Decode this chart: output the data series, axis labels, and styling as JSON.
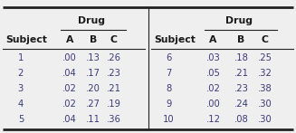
{
  "left_subjects": [
    "1",
    "2",
    "3",
    "4",
    "5"
  ],
  "left_A": [
    ".00",
    ".04",
    ".02",
    ".02",
    ".04"
  ],
  "left_B": [
    ".13",
    ".17",
    ".20",
    ".27",
    ".11"
  ],
  "left_C": [
    ".26",
    ".23",
    ".21",
    ".19",
    ".36"
  ],
  "right_subjects": [
    "6",
    "7",
    "8",
    "9",
    "10"
  ],
  "right_A": [
    ".03",
    ".05",
    ".02",
    ".00",
    ".12"
  ],
  "right_B": [
    ".18",
    ".21",
    ".23",
    ".24",
    ".08"
  ],
  "right_C": [
    ".25",
    ".32",
    ".38",
    ".30",
    ".30"
  ],
  "col_header": "Drug",
  "sub_header": "Subject",
  "drug_cols": [
    "A",
    "B",
    "C"
  ],
  "bg_color": "#f0eff0",
  "data_color": "#3a3a7a",
  "header_color": "#1a1a1a",
  "line_color": "#222222"
}
